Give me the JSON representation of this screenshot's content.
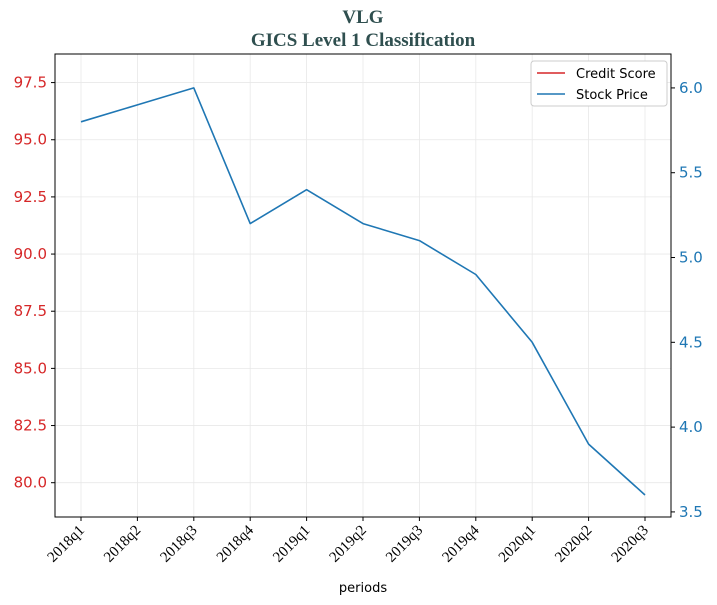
{
  "chart_data": {
    "type": "line",
    "title": "VLG",
    "subtitle": "GICS Level 1 Classification",
    "xlabel": "periods",
    "x": [
      "2018q1",
      "2018q2",
      "2018q3",
      "2018q4",
      "2019q1",
      "2019q2",
      "2019q3",
      "2019q4",
      "2020q1",
      "2020q2",
      "2020q3"
    ],
    "y_left": {
      "ylim": [
        78.5,
        98.75
      ],
      "ticks": [
        "80.0",
        "82.5",
        "85.0",
        "87.5",
        "90.0",
        "92.5",
        "95.0",
        "97.5"
      ],
      "color": "#d62728"
    },
    "y_right": {
      "ylim": [
        3.47,
        6.2
      ],
      "ticks": [
        "3.5",
        "4.0",
        "4.5",
        "5.0",
        "5.5",
        "6.0"
      ],
      "color": "#1f77b4"
    },
    "series": [
      {
        "name": "Credit Score",
        "axis": "left",
        "color": "#d62728",
        "values": [
          null,
          null,
          null,
          null,
          null,
          null,
          null,
          null,
          null,
          null,
          null
        ]
      },
      {
        "name": "Stock Price",
        "axis": "right",
        "color": "#1f77b4",
        "values": [
          5.8,
          5.9,
          6.0,
          5.2,
          5.4,
          5.2,
          5.1,
          4.9,
          4.5,
          3.9,
          3.6
        ]
      }
    ],
    "grid": true,
    "legend": "top-right"
  }
}
